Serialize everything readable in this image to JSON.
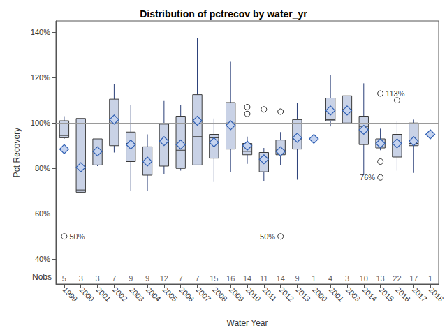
{
  "chart_data": {
    "type": "boxplot",
    "title": "Distribution of pctrecov by water_yr",
    "x_label": "Water Year",
    "y_label": "Pct Recovery",
    "categories": [
      "1999",
      "2000",
      "2001",
      "2002",
      "2003",
      "2004",
      "2005",
      "2006",
      "2007",
      "2008",
      "2009",
      "2010",
      "2011",
      "2012",
      "2013",
      "2000",
      "2001",
      "2003",
      "2014",
      "2015",
      "2016",
      "2017",
      "2018"
    ],
    "boxes": [
      [
        93,
        93.5,
        94.5,
        101,
        103
      ],
      [
        69,
        69.5,
        70.5,
        102,
        102
      ],
      [
        81,
        81.5,
        87.5,
        93,
        93
      ],
      [
        87,
        90,
        100,
        110.5,
        117
      ],
      [
        70,
        83,
        91,
        96,
        108
      ],
      [
        70,
        77,
        83,
        89.5,
        95
      ],
      [
        77.5,
        81,
        92,
        99.5,
        110
      ],
      [
        79,
        80,
        88,
        103,
        108
      ],
      [
        81.5,
        81.5,
        94,
        112.5,
        137.5
      ],
      [
        74,
        84.5,
        93.5,
        95,
        102
      ],
      [
        78.5,
        88.5,
        100,
        109,
        127
      ],
      [
        82,
        86,
        87.5,
        91,
        94
      ],
      [
        74.5,
        78.5,
        84,
        87,
        89
      ],
      [
        81.5,
        86,
        88,
        92.5,
        96
      ],
      [
        75,
        88.5,
        93,
        101.5,
        109
      ],
      null,
      [
        98.5,
        101,
        101.5,
        111,
        121
      ],
      [
        100,
        100,
        106,
        112,
        112
      ],
      [
        77,
        90.5,
        98.5,
        103,
        117.5
      ],
      [
        88,
        89,
        91.5,
        93,
        97.5
      ],
      [
        79,
        85,
        91,
        95,
        101
      ],
      [
        78,
        90,
        91,
        100,
        101.5
      ],
      null
    ],
    "means": [
      88.5,
      80.5,
      87.5,
      101.5,
      90.5,
      83,
      92,
      90.5,
      101,
      91.5,
      99,
      90,
      84,
      87.5,
      93.5,
      93,
      105.5,
      105.5,
      97,
      91,
      91,
      92,
      95
    ],
    "outliers": [
      [
        50
      ],
      [],
      [],
      [],
      [],
      [],
      [],
      [],
      [],
      [],
      [],
      [
        104,
        107
      ],
      [
        106
      ],
      [
        105,
        50
      ],
      [],
      [],
      [],
      [],
      [],
      [
        113,
        83,
        76
      ],
      [
        110
      ],
      [],
      []
    ],
    "outlier_labels": [
      [
        "50%"
      ],
      [],
      [],
      [],
      [],
      [],
      [],
      [],
      [],
      [],
      [],
      [
        null,
        null
      ],
      [
        null
      ],
      [
        null,
        "50%"
      ],
      [],
      [],
      [],
      [],
      [],
      [
        "113%",
        null,
        "76%"
      ],
      [
        null
      ],
      [],
      []
    ],
    "nobs_label": "Nobs",
    "nobs": [
      5,
      3,
      3,
      7,
      9,
      9,
      12,
      7,
      7,
      15,
      16,
      14,
      11,
      14,
      9,
      1,
      4,
      3,
      10,
      13,
      22,
      17,
      1
    ],
    "reference_line": 100,
    "ylim": [
      29,
      145
    ],
    "yticks": [
      {
        "value": 40,
        "label": "40%"
      },
      {
        "value": 60,
        "label": "60%"
      },
      {
        "value": 80,
        "label": "80%"
      },
      {
        "value": 100,
        "label": "100%"
      },
      {
        "value": 120,
        "label": "120%"
      },
      {
        "value": 140,
        "label": "140%"
      }
    ],
    "grid": false,
    "color": "#c9d2e6"
  }
}
